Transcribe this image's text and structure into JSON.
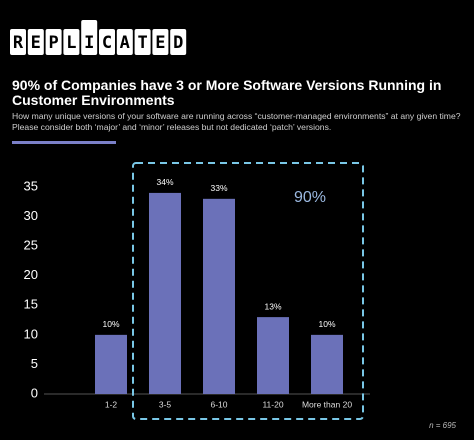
{
  "header": {
    "logo": [
      "R",
      "E",
      "P",
      "L",
      "I",
      "C",
      "A",
      "T",
      "E",
      "D"
    ]
  },
  "chart_data": {
    "type": "bar",
    "title": "90% of Companies have 3 or More Software Versions Running in Customer Environments",
    "subtitle": "How many unique versions of your software are running across “customer-managed environments” at any given time? Please consider both ‘major’ and ‘minor’ releases but not dedicated ‘patch’ versions.",
    "categories": [
      "1-2",
      "3-5",
      "6-10",
      "11-20",
      "More than 20"
    ],
    "values": [
      10,
      34,
      33,
      13,
      10
    ],
    "value_labels": [
      "10%",
      "34%",
      "33%",
      "13%",
      "10%"
    ],
    "color": "#6b71b9",
    "ylim": [
      0,
      35
    ],
    "yticks": [
      0,
      5,
      10,
      15,
      20,
      25,
      30,
      35
    ],
    "grid": false,
    "annotation": "90%",
    "note": "n = 695"
  }
}
